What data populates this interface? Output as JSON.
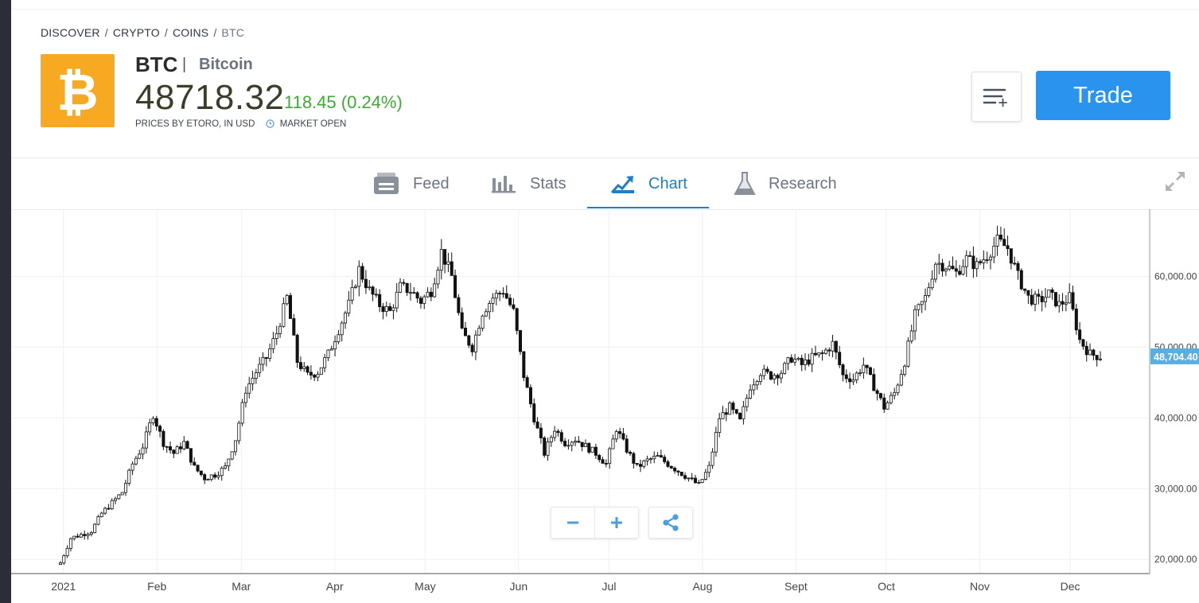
{
  "breadcrumb": {
    "items": [
      "DISCOVER",
      "CRYPTO",
      "COINS"
    ],
    "current": "BTC"
  },
  "instrument": {
    "symbol": "BTC",
    "name": "Bitcoin",
    "price": "48718.32",
    "change": "118.45 (0.24%)",
    "price_source": "PRICES BY ETORO, IN USD",
    "market_status": "MARKET OPEN",
    "logo_glyph": "₿",
    "logo_color": "#f7a922"
  },
  "actions": {
    "trade_label": "Trade",
    "watchlist_icon": "add-to-list-icon"
  },
  "tabs": [
    {
      "label": "Feed",
      "icon": "feed-icon"
    },
    {
      "label": "Stats",
      "icon": "stats-icon"
    },
    {
      "label": "Chart",
      "icon": "chart-icon",
      "active": true
    },
    {
      "label": "Research",
      "icon": "flask-icon"
    }
  ],
  "colors": {
    "accent": "#1b7fc9",
    "trade": "#2a93ed",
    "positive": "#3eab33",
    "price_tag": "#5aafe0"
  },
  "chart_data": {
    "type": "candlestick",
    "title": "",
    "x_ticks": [
      "2021",
      "Feb",
      "Mar",
      "Apr",
      "May",
      "Jun",
      "Jul",
      "Aug",
      "Sept",
      "Oct",
      "Nov",
      "Dec"
    ],
    "y_ticks": [
      "20,000.00",
      "30,000.00",
      "40,000.00",
      "50,000.00",
      "60,000.00"
    ],
    "ylim": [
      18000,
      69500
    ],
    "grid": true,
    "last_price_label": "48,704.40",
    "last_price": 48704.4,
    "series": [
      {
        "name": "BTC",
        "x_range": [
          "2020-12-31",
          "2021-12-11"
        ],
        "close": [
          19500,
          23000,
          23500,
          24000,
          26500,
          28000,
          29500,
          33500,
          36000,
          40500,
          36500,
          35000,
          36500,
          33000,
          31500,
          32000,
          33000,
          37000,
          44000,
          46500,
          48500,
          52000,
          57000,
          48000,
          46000,
          46500,
          49000,
          52500,
          56000,
          61000,
          58000,
          56000,
          55000,
          58500,
          58000,
          56500,
          58000,
          63500,
          60000,
          52000,
          50000,
          55000,
          57000,
          58000,
          55000,
          46000,
          40000,
          35000,
          38500,
          36500,
          37000,
          36000,
          35000,
          33500,
          38500,
          35500,
          33000,
          34000,
          34500,
          33500,
          32500,
          31500,
          30500,
          33000,
          40000,
          41500,
          39500,
          44500,
          46500,
          46000,
          46500,
          48500,
          47500,
          48500,
          49000,
          50500,
          46000,
          45500,
          47500,
          44500,
          41500,
          43500,
          48000,
          54500,
          57000,
          62000,
          61500,
          60500,
          62500,
          61500,
          63000,
          65000,
          64000,
          60000,
          57000,
          56500,
          57500,
          56000,
          57000,
          51000,
          49000,
          48704
        ]
      }
    ]
  }
}
